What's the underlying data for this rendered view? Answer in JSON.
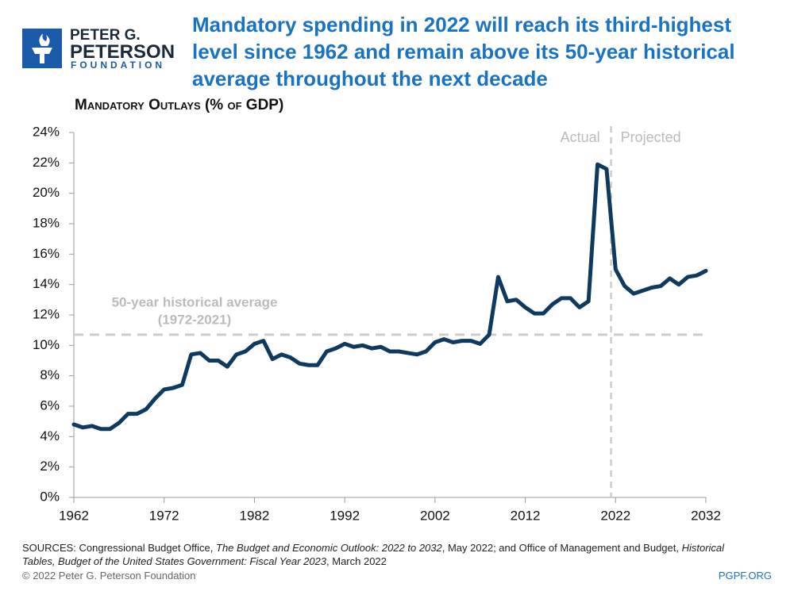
{
  "logo": {
    "line1": "PETER G.",
    "line2": "PETERSON",
    "line3": "FOUNDATION"
  },
  "chart_data": {
    "type": "line",
    "title": "Mandatory spending in 2022 will reach its third-highest level since 1962 and remain above its 50-year historical average throughout the next decade",
    "subtitle": "Mandatory Outlays (% of GDP)",
    "x": [
      1962,
      1963,
      1964,
      1965,
      1966,
      1967,
      1968,
      1969,
      1970,
      1971,
      1972,
      1973,
      1974,
      1975,
      1976,
      1977,
      1978,
      1979,
      1980,
      1981,
      1982,
      1983,
      1984,
      1985,
      1986,
      1987,
      1988,
      1989,
      1990,
      1991,
      1992,
      1993,
      1994,
      1995,
      1996,
      1997,
      1998,
      1999,
      2000,
      2001,
      2002,
      2003,
      2004,
      2005,
      2006,
      2007,
      2008,
      2009,
      2010,
      2011,
      2012,
      2013,
      2014,
      2015,
      2016,
      2017,
      2018,
      2019,
      2020,
      2021,
      2022,
      2023,
      2024,
      2025,
      2026,
      2027,
      2028,
      2029,
      2030,
      2031,
      2032
    ],
    "series": [
      {
        "name": "Mandatory outlays",
        "color": "#0d3a5e",
        "values": [
          4.8,
          4.6,
          4.7,
          4.5,
          4.5,
          4.9,
          5.5,
          5.5,
          5.8,
          6.5,
          7.1,
          7.2,
          7.4,
          9.4,
          9.5,
          9.0,
          9.0,
          8.6,
          9.4,
          9.6,
          10.1,
          10.3,
          9.1,
          9.4,
          9.2,
          8.8,
          8.7,
          8.7,
          9.6,
          9.8,
          10.1,
          9.9,
          10.0,
          9.8,
          9.9,
          9.6,
          9.6,
          9.5,
          9.4,
          9.6,
          10.2,
          10.4,
          10.2,
          10.3,
          10.3,
          10.1,
          10.7,
          14.5,
          12.9,
          13.0,
          12.5,
          12.1,
          12.1,
          12.7,
          13.1,
          13.1,
          12.5,
          12.9,
          21.9,
          21.6,
          15.0,
          13.9,
          13.4,
          13.6,
          13.8,
          13.9,
          14.4,
          14.0,
          14.5,
          14.6,
          14.9
        ]
      }
    ],
    "xlim": [
      1962,
      2032
    ],
    "xticks": [
      1962,
      1972,
      1982,
      1992,
      2002,
      2012,
      2022,
      2032
    ],
    "ylim": [
      0,
      24
    ],
    "yticks": [
      {
        "value": 0,
        "label": "0%"
      },
      {
        "value": 2,
        "label": "2%"
      },
      {
        "value": 4,
        "label": "4%"
      },
      {
        "value": 6,
        "label": "6%"
      },
      {
        "value": 8,
        "label": "8%"
      },
      {
        "value": 10,
        "label": "10%"
      },
      {
        "value": 12,
        "label": "12%"
      },
      {
        "value": 14,
        "label": "14%"
      },
      {
        "value": 16,
        "label": "16%"
      },
      {
        "value": 18,
        "label": "18%"
      },
      {
        "value": 20,
        "label": "20%"
      },
      {
        "value": 22,
        "label": "22%"
      },
      {
        "value": 24,
        "label": "24%"
      }
    ],
    "average": {
      "value": 10.7,
      "label": "50-year historical average",
      "period": "(1972-2021)"
    },
    "divider": {
      "x": 2021.5,
      "left": "Actual",
      "right": "Projected"
    }
  },
  "sources": [
    {
      "text": "SOURCES: Congressional Budget Office, ",
      "italic": false
    },
    {
      "text": "The Budget and Economic Outlook: 2022 to 2032",
      "italic": true
    },
    {
      "text": ", May 2022; and Office of Management and Budget, ",
      "italic": false
    },
    {
      "text": "Historical Tables, Budget of the United States Government: Fiscal Year 2023",
      "italic": true
    },
    {
      "text": ", March 2022",
      "italic": false
    }
  ],
  "footer": {
    "copyright": "© 2022 Peter G. Peterson Foundation",
    "site": "PGPF.ORG"
  }
}
